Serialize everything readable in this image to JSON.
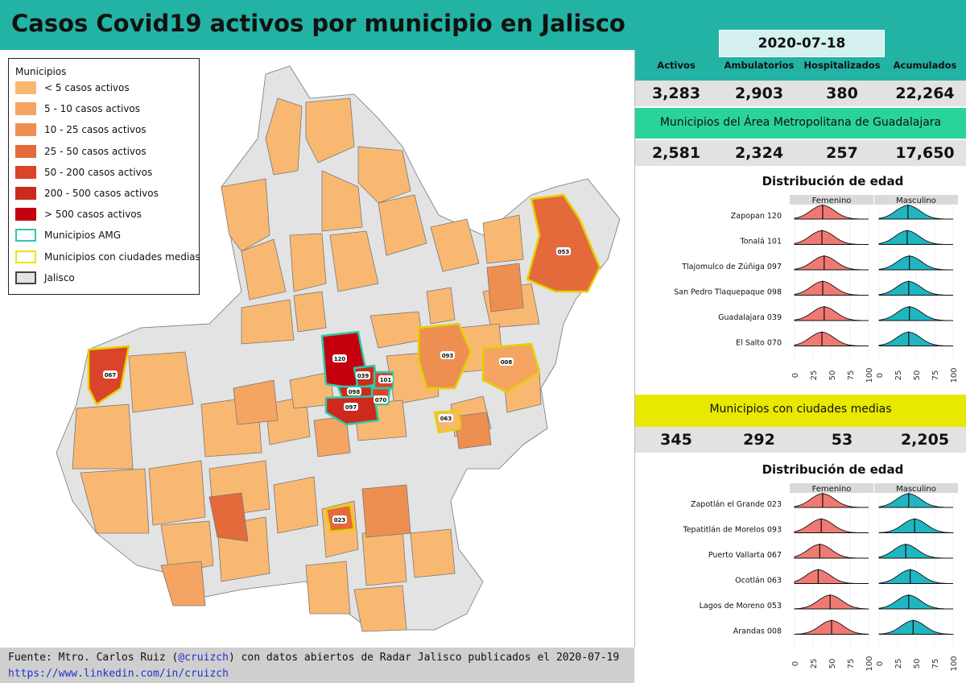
{
  "title": "Casos Covid19 activos por municipio en Jalisco",
  "date": "2020-07-18",
  "legend": {
    "title": "Municipios",
    "items": [
      {
        "label": "< 5 casos activos",
        "color": "#f9b872"
      },
      {
        "label": "5 - 10 casos activos",
        "color": "#f5a462"
      },
      {
        "label": "10 - 25 casos activos",
        "color": "#ee8f52"
      },
      {
        "label": "25 - 50 casos activos",
        "color": "#e46a3c"
      },
      {
        "label": "50 - 200 casos activos",
        "color": "#d9442a"
      },
      {
        "label": "200 - 500 casos activos",
        "color": "#cc2a1c"
      },
      {
        "label": "> 500 casos activos",
        "color": "#c4000f"
      },
      {
        "label": "Municipios AMG",
        "color": "#2ec9a8"
      },
      {
        "label": "Municipios con ciudades medias",
        "color": "#e6e600"
      },
      {
        "label": "Jalisco",
        "color": "#e3e3e3"
      }
    ]
  },
  "map_labels": [
    "120",
    "039",
    "101",
    "098",
    "070",
    "097",
    "093",
    "008",
    "053",
    "067",
    "063",
    "023"
  ],
  "stats": {
    "headers": [
      "Activos",
      "Ambulatorios",
      "Hospitalizados",
      "Acumulados"
    ],
    "jalisco": [
      "3,283",
      "2,903",
      "380",
      "22,264"
    ],
    "amg_title": "Municipios del Área Metropolitana de Guadalajara",
    "amg": [
      "2,581",
      "2,324",
      "257",
      "17,650"
    ],
    "medias_title": "Municipios con ciudades medias",
    "medias": [
      "345",
      "292",
      "53",
      "2,205"
    ]
  },
  "colors": {
    "teal": "#22b3a4",
    "amg_band": "#2ad39a",
    "medias_band": "#e8e800",
    "female": "#f07a73",
    "male": "#1fb6c1"
  },
  "chart_data": [
    {
      "type": "area",
      "title": "Distribución de edad",
      "facets": [
        "Femenino",
        "Masculino"
      ],
      "categories": [
        "Zapopan 120",
        "Tonalá 101",
        "Tlajomulco de Zúñiga 097",
        "San Pedro Tlaquepaque 098",
        "Guadalajara 039",
        "El Salto 070"
      ],
      "x_ticks": [
        "0",
        "25",
        "50",
        "75",
        "100"
      ],
      "xlim": [
        0,
        100
      ],
      "series": [
        {
          "name": "Femenino",
          "medians": [
            38,
            37,
            40,
            38,
            40,
            37
          ]
        },
        {
          "name": "Masculino",
          "medians": [
            39,
            38,
            41,
            40,
            41,
            40
          ]
        }
      ]
    },
    {
      "type": "area",
      "title": "Distribución de edad",
      "facets": [
        "Femenino",
        "Masculino"
      ],
      "categories": [
        "Zapotlán el Grande 023",
        "Tepatitlán de Morelos 093",
        "Puerto Vallarta 067",
        "Ocotlán 063",
        "Lagos de Moreno 053",
        "Arandas 008"
      ],
      "x_ticks": [
        "0",
        "25",
        "50",
        "75",
        "100"
      ],
      "xlim": [
        0,
        100
      ],
      "series": [
        {
          "name": "Femenino",
          "medians": [
            38,
            36,
            34,
            32,
            48,
            50
          ]
        },
        {
          "name": "Masculino",
          "medians": [
            40,
            48,
            36,
            42,
            40,
            46
          ]
        }
      ]
    }
  ],
  "footer": {
    "source_prefix": "Fuente: Mtro. Carlos Ruiz (",
    "source_handle": "@cruizch",
    "source_suffix": ") con datos abiertos de Radar Jalisco publicados el 2020-07-19",
    "url": "https://www.linkedin.com/in/cruizch"
  }
}
